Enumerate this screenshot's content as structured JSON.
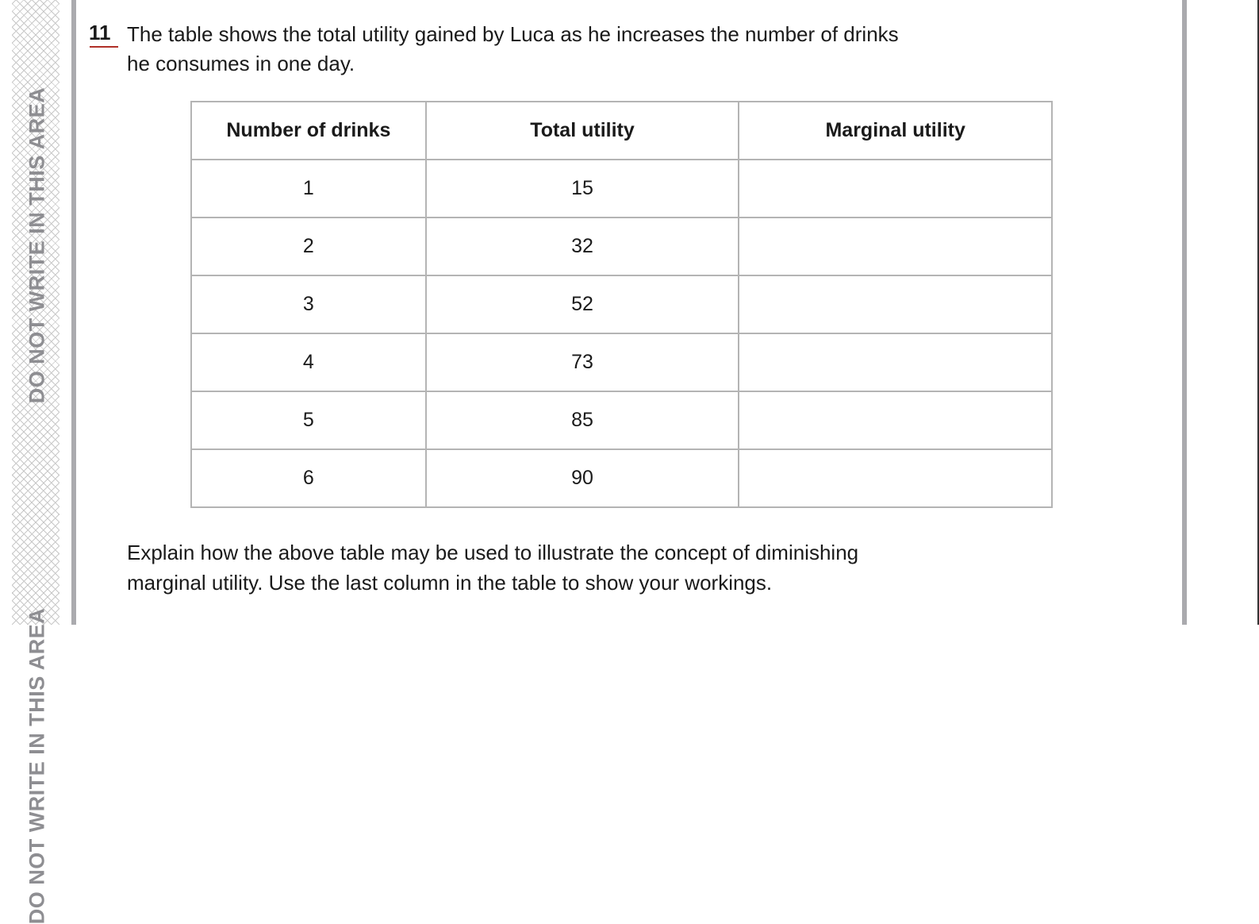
{
  "margin": {
    "warning": "DO NOT WRITE IN THIS AREA",
    "warning_cut": "DO NOT WRITE IN THIS AREA"
  },
  "question": {
    "number": "11",
    "intro_line1": "The table shows the total utility gained by Luca as he increases the number of drinks",
    "intro_line2": "he consumes in one day.",
    "table": {
      "headers": [
        "Number of drinks",
        "Total utility",
        "Marginal utility"
      ],
      "rows": [
        [
          "1",
          "15",
          ""
        ],
        [
          "2",
          "32",
          ""
        ],
        [
          "3",
          "52",
          ""
        ],
        [
          "4",
          "73",
          ""
        ],
        [
          "5",
          "85",
          ""
        ],
        [
          "6",
          "90",
          ""
        ]
      ]
    },
    "prompt_line1": "Explain how the above table may be used to illustrate the concept of diminishing",
    "prompt_line2": "marginal utility. Use the last column in the table to show your workings."
  }
}
